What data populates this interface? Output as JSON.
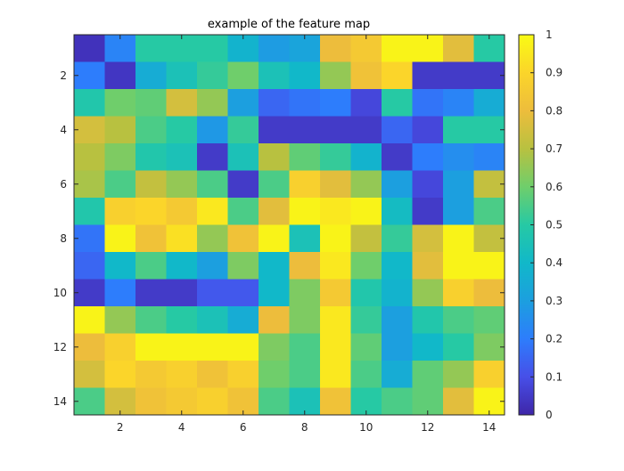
{
  "chart_data": {
    "type": "heatmap",
    "title": "example of the feature map",
    "xlabel": "",
    "ylabel": "",
    "rows": 14,
    "cols": 14,
    "x_range": [
      0.5,
      14.5
    ],
    "y_range": [
      0.5,
      14.5
    ],
    "y_reversed": true,
    "x_ticks": [
      2,
      4,
      6,
      8,
      10,
      12,
      14
    ],
    "y_ticks": [
      2,
      4,
      6,
      8,
      10,
      12,
      14
    ],
    "colormap": "parula",
    "colorbar": {
      "range": [
        0,
        1
      ],
      "ticks": [
        0,
        0.1,
        0.2,
        0.3,
        0.4,
        0.5,
        0.6,
        0.7,
        0.8,
        0.9,
        1
      ],
      "tick_labels": [
        "0",
        "0.1",
        "0.2",
        "0.3",
        "0.4",
        "0.5",
        "0.6",
        "0.7",
        "0.8",
        "0.9",
        "1"
      ],
      "location": "right"
    },
    "grid": false,
    "values": [
      [
        0.03,
        0.22,
        0.5,
        0.5,
        0.5,
        0.38,
        0.29,
        0.32,
        0.8,
        0.85,
        0.98,
        0.98,
        0.78,
        0.5
      ],
      [
        0.2,
        0.04,
        0.35,
        0.45,
        0.52,
        0.6,
        0.45,
        0.4,
        0.65,
        0.82,
        0.9,
        0.05,
        0.05,
        0.05
      ],
      [
        0.48,
        0.6,
        0.58,
        0.75,
        0.65,
        0.3,
        0.15,
        0.18,
        0.2,
        0.08,
        0.5,
        0.18,
        0.22,
        0.35
      ],
      [
        0.75,
        0.7,
        0.55,
        0.5,
        0.28,
        0.52,
        0.05,
        0.05,
        0.05,
        0.05,
        0.15,
        0.08,
        0.5,
        0.5
      ],
      [
        0.7,
        0.62,
        0.48,
        0.45,
        0.05,
        0.45,
        0.7,
        0.58,
        0.52,
        0.38,
        0.05,
        0.2,
        0.25,
        0.22
      ],
      [
        0.68,
        0.55,
        0.72,
        0.65,
        0.55,
        0.05,
        0.55,
        0.88,
        0.78,
        0.65,
        0.3,
        0.08,
        0.3,
        0.72
      ],
      [
        0.48,
        0.88,
        0.9,
        0.85,
        0.95,
        0.55,
        0.78,
        0.98,
        0.95,
        0.98,
        0.42,
        0.05,
        0.3,
        0.55
      ],
      [
        0.18,
        0.98,
        0.82,
        0.93,
        0.65,
        0.82,
        0.98,
        0.45,
        0.98,
        0.72,
        0.52,
        0.75,
        0.98,
        0.72
      ],
      [
        0.15,
        0.4,
        0.55,
        0.4,
        0.3,
        0.62,
        0.4,
        0.8,
        0.95,
        0.6,
        0.4,
        0.78,
        0.98,
        0.98
      ],
      [
        0.05,
        0.2,
        0.05,
        0.05,
        0.12,
        0.12,
        0.4,
        0.62,
        0.85,
        0.48,
        0.38,
        0.65,
        0.88,
        0.8
      ],
      [
        0.98,
        0.65,
        0.55,
        0.5,
        0.45,
        0.35,
        0.8,
        0.62,
        0.95,
        0.52,
        0.3,
        0.48,
        0.55,
        0.58
      ],
      [
        0.8,
        0.88,
        0.98,
        0.98,
        0.98,
        0.98,
        0.62,
        0.55,
        0.95,
        0.58,
        0.3,
        0.4,
        0.5,
        0.62
      ],
      [
        0.75,
        0.9,
        0.85,
        0.88,
        0.82,
        0.88,
        0.6,
        0.55,
        0.95,
        0.55,
        0.35,
        0.58,
        0.65,
        0.88
      ],
      [
        0.55,
        0.75,
        0.82,
        0.85,
        0.88,
        0.82,
        0.55,
        0.45,
        0.82,
        0.5,
        0.55,
        0.58,
        0.78,
        0.98
      ]
    ]
  }
}
